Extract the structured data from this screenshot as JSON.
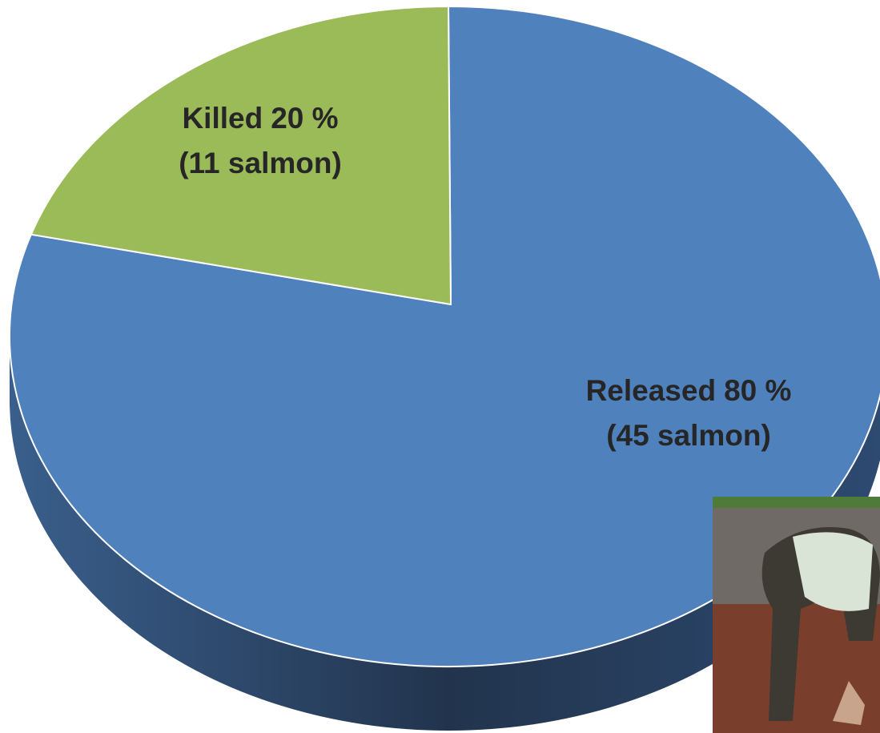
{
  "chart_data": {
    "type": "pie",
    "categories": [
      "Released",
      "Killed"
    ],
    "values": [
      80,
      20
    ],
    "value_labels": [
      "80 %",
      "20 %"
    ],
    "sublabels": [
      "(45 salmon)",
      "(11 salmon)"
    ],
    "colors": [
      "#4f81bd",
      "#9bbb59"
    ]
  }
}
